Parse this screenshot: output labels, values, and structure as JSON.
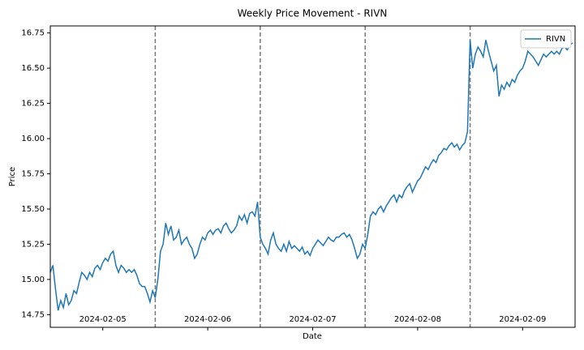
{
  "chart_data": {
    "type": "line",
    "title": "Weekly Price Movement - RIVN",
    "xlabel": "Date",
    "ylabel": "Price",
    "x": [
      0,
      1,
      2,
      3,
      4,
      5,
      6,
      7,
      8,
      9,
      10,
      11,
      12,
      13,
      14,
      15,
      16,
      17,
      18,
      19,
      20,
      21,
      22,
      23,
      24,
      25,
      26,
      27,
      28,
      29,
      30,
      31,
      32,
      33,
      34,
      35,
      36,
      37,
      38,
      39,
      40,
      41,
      42,
      43,
      44,
      45,
      46,
      47,
      48,
      49,
      50,
      51,
      52,
      53,
      54,
      55,
      56,
      57,
      58,
      59,
      60,
      61,
      62,
      63,
      64,
      65,
      66,
      67,
      68,
      69,
      70,
      71,
      72,
      73,
      74,
      75,
      76,
      77,
      78,
      79,
      80,
      81,
      82,
      83,
      84,
      85,
      86,
      87,
      88,
      89,
      90,
      91,
      92,
      93,
      94,
      95,
      96,
      97,
      98,
      99,
      100,
      101,
      102,
      103,
      104,
      105,
      106,
      107,
      108,
      109,
      110,
      111,
      112,
      113,
      114,
      115,
      116,
      117,
      118,
      119,
      120,
      121,
      122,
      123,
      124,
      125,
      126,
      127,
      128,
      129,
      130,
      131,
      132,
      133,
      134,
      135,
      136,
      137,
      138,
      139,
      140,
      141,
      142,
      143,
      144,
      145,
      146,
      147,
      148,
      149,
      150,
      151,
      152,
      153,
      154,
      155,
      156,
      157,
      158,
      159,
      160,
      161,
      162,
      163,
      164,
      165,
      166,
      167,
      168,
      169,
      170,
      171,
      172,
      173,
      174,
      175,
      176,
      177,
      178,
      179,
      180,
      181,
      182,
      183,
      184,
      185,
      186,
      187,
      188,
      189,
      190,
      191,
      192,
      193,
      194,
      195,
      196,
      197,
      198,
      199
    ],
    "series": [
      {
        "name": "RIVN",
        "color": "#1f77b4",
        "values": [
          15.05,
          15.1,
          14.93,
          14.78,
          14.85,
          14.8,
          14.9,
          14.82,
          14.85,
          14.92,
          14.9,
          14.98,
          15.05,
          15.03,
          15.0,
          15.05,
          15.02,
          15.08,
          15.1,
          15.07,
          15.12,
          15.15,
          15.13,
          15.18,
          15.2,
          15.1,
          15.05,
          15.1,
          15.08,
          15.05,
          15.07,
          15.05,
          15.07,
          15.03,
          14.97,
          14.95,
          14.95,
          14.9,
          14.84,
          14.92,
          14.87,
          15.0,
          15.2,
          15.25,
          15.4,
          15.32,
          15.38,
          15.28,
          15.3,
          15.35,
          15.25,
          15.28,
          15.3,
          15.25,
          15.22,
          15.15,
          15.18,
          15.25,
          15.3,
          15.28,
          15.33,
          15.35,
          15.32,
          15.35,
          15.36,
          15.33,
          15.38,
          15.4,
          15.36,
          15.33,
          15.35,
          15.38,
          15.45,
          15.42,
          15.46,
          15.4,
          15.47,
          15.48,
          15.45,
          15.55,
          15.3,
          15.25,
          15.22,
          15.18,
          15.28,
          15.33,
          15.25,
          15.22,
          15.2,
          15.25,
          15.2,
          15.27,
          15.22,
          15.24,
          15.22,
          15.2,
          15.23,
          15.18,
          15.2,
          15.17,
          15.22,
          15.25,
          15.28,
          15.26,
          15.24,
          15.27,
          15.3,
          15.28,
          15.27,
          15.3,
          15.3,
          15.32,
          15.33,
          15.3,
          15.32,
          15.28,
          15.22,
          15.15,
          15.18,
          15.25,
          15.22,
          15.32,
          15.45,
          15.48,
          15.46,
          15.5,
          15.52,
          15.48,
          15.52,
          15.55,
          15.58,
          15.6,
          15.55,
          15.6,
          15.58,
          15.63,
          15.66,
          15.68,
          15.62,
          15.66,
          15.7,
          15.72,
          15.76,
          15.8,
          15.78,
          15.82,
          15.85,
          15.83,
          15.88,
          15.9,
          15.93,
          15.92,
          15.95,
          15.97,
          15.94,
          15.96,
          15.92,
          15.95,
          15.97,
          16.05,
          16.7,
          16.5,
          16.6,
          16.65,
          16.62,
          16.58,
          16.7,
          16.62,
          16.55,
          16.48,
          16.52,
          16.3,
          16.38,
          16.35,
          16.4,
          16.37,
          16.42,
          16.4,
          16.45,
          16.48,
          16.5,
          16.55,
          16.62,
          16.6,
          16.58,
          16.55,
          16.52,
          16.56,
          16.6,
          16.58,
          16.6,
          16.62,
          16.6,
          16.62,
          16.6,
          16.64,
          16.65,
          16.63,
          16.66,
          16.68
        ]
      }
    ],
    "xlim": [
      0,
      200
    ],
    "xticks": [
      {
        "value": 20,
        "label": "2024-02-05"
      },
      {
        "value": 60,
        "label": "2024-02-06"
      },
      {
        "value": 100,
        "label": "2024-02-07"
      },
      {
        "value": 140,
        "label": "2024-02-08"
      },
      {
        "value": 180,
        "label": "2024-02-09"
      }
    ],
    "vlines": [
      40,
      80,
      120,
      160
    ],
    "ylim": [
      14.66,
      16.8
    ],
    "yticks": [
      14.75,
      {
        "value": 15,
        "label": "15.00"
      },
      15.25,
      {
        "value": 15.5,
        "label": "15.50"
      },
      15.75,
      {
        "value": 16,
        "label": "16.00"
      },
      16.25,
      {
        "value": 16.5,
        "label": "16.50"
      },
      16.75
    ],
    "grid": false,
    "legend": "upper right"
  }
}
